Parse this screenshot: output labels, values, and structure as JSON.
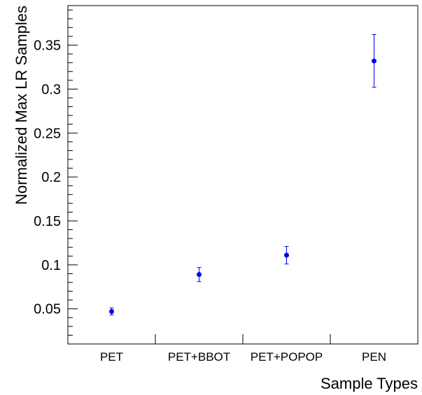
{
  "chart_data": {
    "type": "scatter",
    "title": "",
    "xlabel": "Sample Types",
    "ylabel": "Normalized Max LR Samples",
    "categories": [
      "PET",
      "PET+BBOT",
      "PET+POPOP",
      "PEN"
    ],
    "series": [
      {
        "values": [
          0.047,
          0.089,
          0.111,
          0.332
        ],
        "errors": [
          0.004,
          0.008,
          0.01,
          0.03
        ],
        "color": "#0000ee"
      }
    ],
    "ylim": [
      0.01,
      0.395
    ],
    "yticks": [
      0.05,
      0.1,
      0.15,
      0.2,
      0.25,
      0.3,
      0.35
    ],
    "ytick_labels": [
      "0.05",
      "0.1",
      "0.15",
      "0.2",
      "0.25",
      "0.3",
      "0.35"
    ],
    "grid": false,
    "legend": "none"
  }
}
